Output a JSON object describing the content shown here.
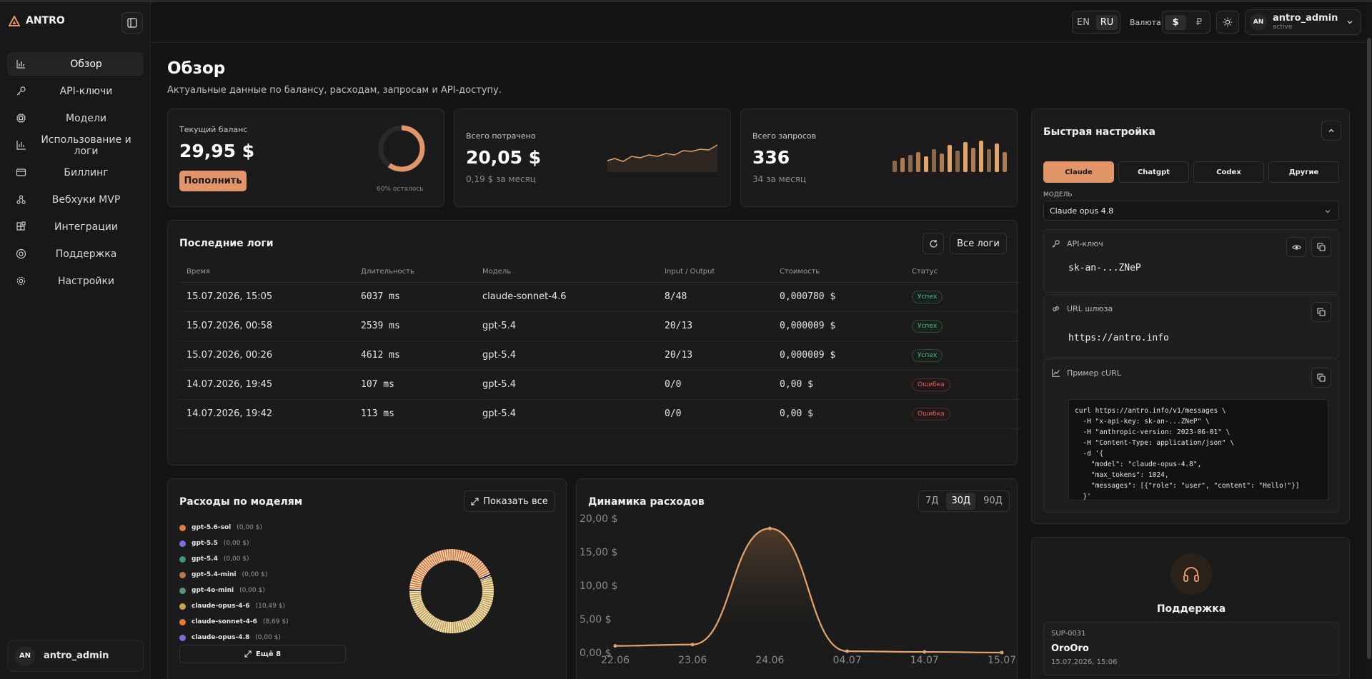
{
  "app": {
    "brand": "ANTRO"
  },
  "sidebar": {
    "items": [
      {
        "label": "Обзор",
        "icon": "bar-chart-icon"
      },
      {
        "label": "API-ключи",
        "icon": "key-icon"
      },
      {
        "label": "Модели",
        "icon": "cpu-icon"
      },
      {
        "label": "Использование и логи",
        "icon": "chart-icon"
      },
      {
        "label": "Биллинг",
        "icon": "card-icon"
      },
      {
        "label": "Вебхуки MVP",
        "icon": "webhook-icon"
      },
      {
        "label": "Интеграции",
        "icon": "blocks-icon"
      },
      {
        "label": "Поддержка",
        "icon": "lifebuoy-icon"
      },
      {
        "label": "Настройки",
        "icon": "gear-icon"
      }
    ],
    "user": {
      "initials": "AN",
      "name": "antro_admin"
    }
  },
  "topbar": {
    "lang_en": "EN",
    "lang_ru": "RU",
    "currency_label": "Валюта:",
    "cur_usd": "$",
    "cur_rub": "₽",
    "user": {
      "initials": "AN",
      "name": "antro_admin",
      "status": "active"
    }
  },
  "page": {
    "title": "Обзор",
    "subtitle": "Актуальные данные по балансу, расходам, запросам и API-доступу."
  },
  "stats": {
    "balance": {
      "label": "Текущий баланс",
      "value": "29,95 $",
      "button": "Пополнить",
      "remaining_text": "60% осталось",
      "remaining_fraction": 0.6
    },
    "spent": {
      "label": "Всего потрачено",
      "value": "20,05 $",
      "sub": "0,19 $ за месяц"
    },
    "requests": {
      "label": "Всего запросов",
      "value": "336",
      "sub": "34 за месяц"
    }
  },
  "logs": {
    "title": "Последние логи",
    "all_button": "Все логи",
    "headers": [
      "Время",
      "Длительность",
      "Модель",
      "Input / Output",
      "Стоимость",
      "Статус"
    ],
    "rows": [
      {
        "time": "15.07.2026, 15:05",
        "duration": "6037 ms",
        "model": "claude-sonnet-4.6",
        "io": "8/48",
        "cost": "0,000780 $",
        "status": "Успех",
        "ok": true
      },
      {
        "time": "15.07.2026, 00:58",
        "duration": "2539 ms",
        "model": "gpt-5.4",
        "io": "20/13",
        "cost": "0,000009 $",
        "status": "Успех",
        "ok": true
      },
      {
        "time": "15.07.2026, 00:26",
        "duration": "4612 ms",
        "model": "gpt-5.4",
        "io": "20/13",
        "cost": "0,000009 $",
        "status": "Успех",
        "ok": true
      },
      {
        "time": "14.07.2026, 19:45",
        "duration": "107 ms",
        "model": "gpt-5.4",
        "io": "0/0",
        "cost": "0,00 $",
        "status": "Ошибка",
        "ok": false
      },
      {
        "time": "14.07.2026, 19:42",
        "duration": "113 ms",
        "model": "gpt-5.4",
        "io": "0/0",
        "cost": "0,00 $",
        "status": "Ошибка",
        "ok": false
      }
    ]
  },
  "models_spend": {
    "title": "Расходы по моделям",
    "show_all": "Показать все",
    "more": "Ещё 8",
    "items": [
      {
        "name": "gpt-5.6-sol",
        "value": "(0,00 $)",
        "color": "#e07b39"
      },
      {
        "name": "gpt-5.5",
        "value": "(0,00 $)",
        "color": "#7b6fe0"
      },
      {
        "name": "gpt-5.4",
        "value": "(0,00 $)",
        "color": "#3f8f8a"
      },
      {
        "name": "gpt-5.4-mini",
        "value": "(0,00 $)",
        "color": "#b07a52"
      },
      {
        "name": "gpt-4o-mini",
        "value": "(0,00 $)",
        "color": "#5f8f80"
      },
      {
        "name": "claude-opus-4-6",
        "value": "(10,49 $)",
        "color": "#c9a24d"
      },
      {
        "name": "claude-sonnet-4-6",
        "value": "(8,69 $)",
        "color": "#e07b39"
      },
      {
        "name": "claude-opus-4.8",
        "value": "(0,00 $)",
        "color": "#7b6fe0"
      }
    ]
  },
  "dynamics": {
    "title": "Динамика расходов",
    "ranges": [
      "7Д",
      "30Д",
      "90Д"
    ],
    "active_range": "30Д"
  },
  "chart_data": {
    "type": "area",
    "x": [
      "22.06",
      "23.06",
      "24.06",
      "04.07",
      "14.07",
      "15.07"
    ],
    "values": [
      1.0,
      1.2,
      18.5,
      0.2,
      0.1,
      0.0
    ],
    "yticks": [
      "0,00 $",
      "5,00 $",
      "10,00 $",
      "15,00 $",
      "20,00 $"
    ],
    "ylim": [
      0,
      20
    ],
    "color": "#e3a46b"
  },
  "quick_setup": {
    "title": "Быстрая настройка",
    "tabs": [
      "Claude",
      "Chatgpt",
      "Codex",
      "Другие"
    ],
    "model_label": "МОДЕЛЬ",
    "model_value": "Claude opus 4.8",
    "api_key_label": "API-ключ",
    "api_key_value": "sk-an-...ZNeP",
    "gateway_label": "URL шлюза",
    "gateway_value": "https://antro.info",
    "curl_label": "Пример cURL",
    "curl_code": "curl https://antro.info/v1/messages \\\n  -H \"x-api-key: sk-an-...ZNeP\" \\\n  -H \"anthropic-version: 2023-06-01\" \\\n  -H \"Content-Type: application/json\" \\\n  -d '{\n    \"model\": \"claude-opus-4.8\",\n    \"max_tokens\": 1024,\n    \"messages\": [{\"role\": \"user\", \"content\": \"Hello!\"}]\n  }'"
  },
  "support": {
    "title": "Поддержка",
    "ticket_id": "SUP-0031",
    "ticket_title": "OroOro",
    "ticket_date": "15.07.2026, 15:06"
  }
}
